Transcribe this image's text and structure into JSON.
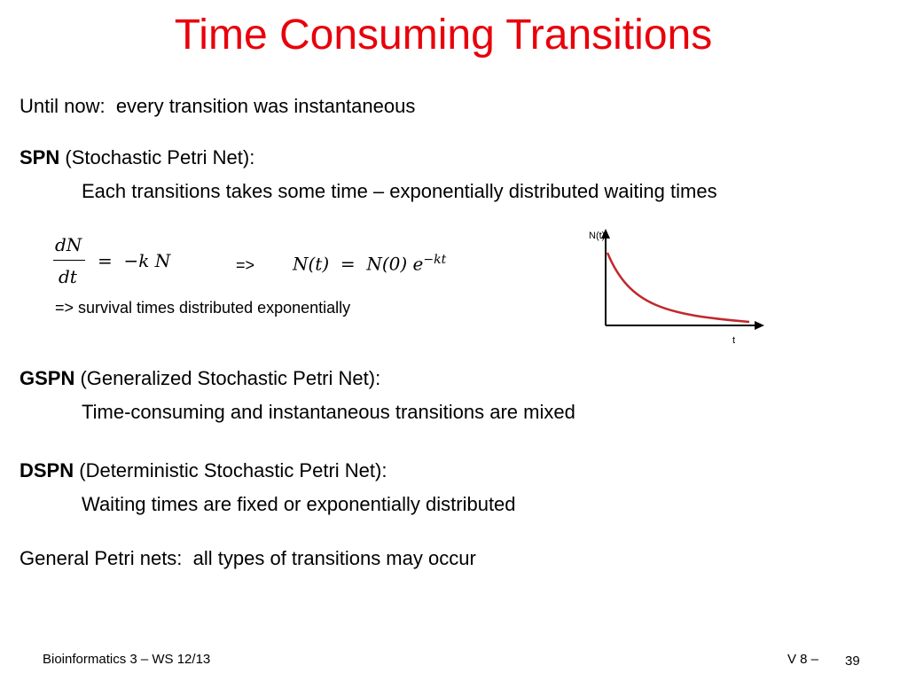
{
  "title": "Time Consuming Transitions",
  "intro": "Until now:  every transition was instantaneous",
  "sections": [
    {
      "term": "SPN",
      "label": "(Stochastic Petri Net):",
      "detail": "Each transitions takes some time – exponentially distributed waiting times"
    },
    {
      "term": "GSPN",
      "label": "(Generalized Stochastic Petri Net):",
      "detail": "Time-consuming and instantaneous transitions are mixed"
    },
    {
      "term": "DSPN",
      "label": "(Deterministic Stochastic Petri Net):",
      "detail": "Waiting times are fixed or exponentially distributed"
    }
  ],
  "formula": {
    "numerator": "dN",
    "denominator": "dt",
    "rhs": "=  −k N",
    "arrow": "=>",
    "solution": "N(t)  =  N(0) e",
    "exponent": "−kt"
  },
  "note": "=> survival times distributed exponentially",
  "graph": {
    "y_label": "N(t)",
    "x_label": "t"
  },
  "closing": "General Petri nets:  all types of transitions may occur",
  "footer": {
    "course": "Bioinformatics 3 – WS 12/13",
    "version": "V 8 –",
    "page": "39"
  }
}
